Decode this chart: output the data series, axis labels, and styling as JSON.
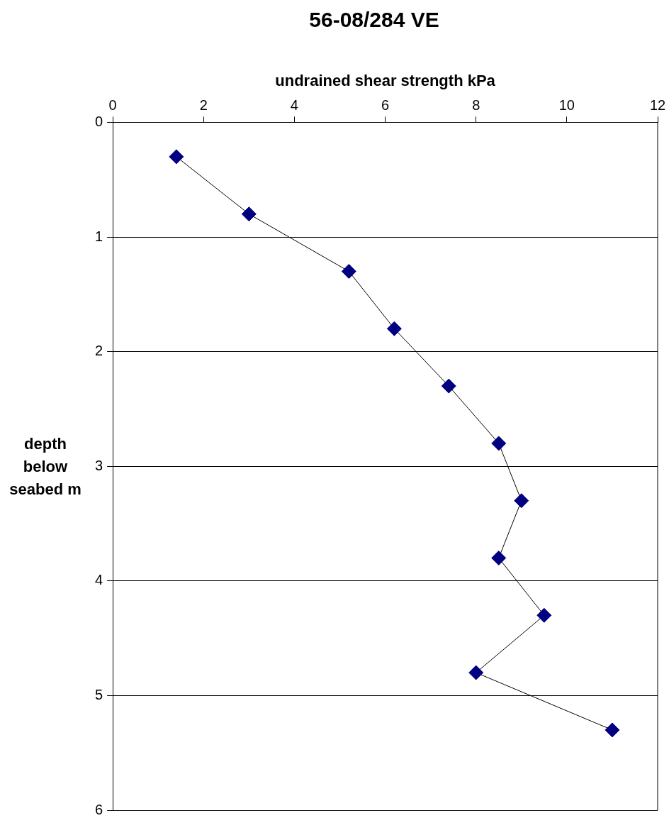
{
  "chart_data": {
    "type": "line",
    "title": "56-08/284 VE",
    "xlabel": "undrained shear strength kPa",
    "ylabel": "depth below seabed m",
    "series": [
      {
        "color": "#000080",
        "x": [
          1.4,
          3.0,
          5.2,
          6.2,
          7.4,
          8.5,
          9.0,
          8.5,
          9.5,
          8.0,
          11.0
        ],
        "values": [
          0.3,
          0.8,
          1.3,
          1.8,
          2.3,
          2.8,
          3.3,
          3.8,
          4.3,
          4.8,
          5.3
        ]
      }
    ],
    "xlim": [
      0,
      12
    ],
    "xticks": [
      0,
      2,
      4,
      6,
      8,
      10,
      12
    ],
    "ylim": [
      6,
      0
    ],
    "yticks": [
      0,
      1,
      2,
      3,
      4,
      5,
      6
    ],
    "grid": "y",
    "legend": false,
    "marker": "diamond",
    "line_style": "solid"
  }
}
